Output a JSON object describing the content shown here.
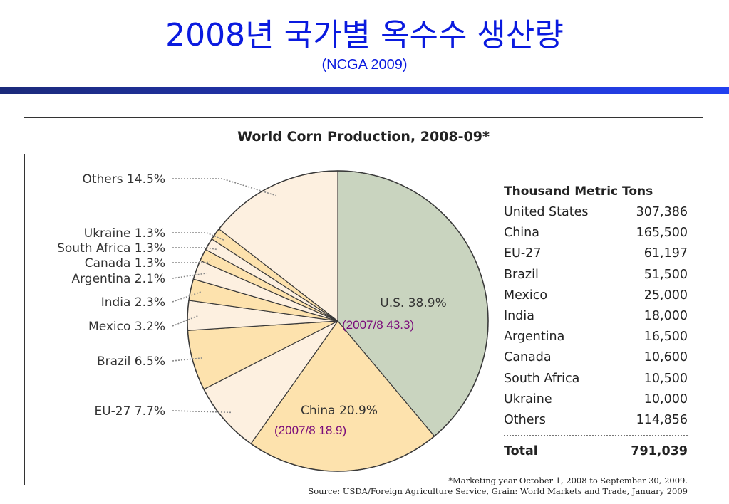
{
  "slide": {
    "title": "2008년 국가별 옥수수 생산량",
    "subtitle": "(NCGA 2009)"
  },
  "chart_data": {
    "type": "pie",
    "title": "World Corn Production, 2008-09*",
    "slices": [
      {
        "label": "U.S.",
        "value": 38.9,
        "color": "#c9d4bf",
        "text": "U.S. 38.9%"
      },
      {
        "label": "China",
        "value": 20.9,
        "color": "#fde2ad",
        "text": "China 20.9%"
      },
      {
        "label": "EU-27",
        "value": 7.7,
        "color": "#fdf0e0",
        "text": "EU-27 7.7%"
      },
      {
        "label": "Brazil",
        "value": 6.5,
        "color": "#fde2ad",
        "text": "Brazil 6.5%"
      },
      {
        "label": "Mexico",
        "value": 3.2,
        "color": "#fdf0e0",
        "text": "Mexico 3.2%"
      },
      {
        "label": "India",
        "value": 2.3,
        "color": "#fde2ad",
        "text": "India 2.3%"
      },
      {
        "label": "Argentina",
        "value": 2.1,
        "color": "#fdf0e0",
        "text": "Argentina 2.1%"
      },
      {
        "label": "Canada",
        "value": 1.3,
        "color": "#fde2ad",
        "text": "Canada 1.3%"
      },
      {
        "label": "South Africa",
        "value": 1.3,
        "color": "#fdf0e0",
        "text": "South Africa 1.3%"
      },
      {
        "label": "Ukraine",
        "value": 1.3,
        "color": "#fde2ad",
        "text": "Ukraine 1.3%"
      },
      {
        "label": "Others",
        "value": 14.5,
        "color": "#fdf0e0",
        "text": "Others 14.5%"
      }
    ],
    "annotations": {
      "us_prev": "(2007/8  43.3)",
      "china_prev": "(2007/8  18.9)"
    }
  },
  "table": {
    "header": "Thousand Metric Tons",
    "rows": [
      {
        "country": "United States",
        "value": "307,386"
      },
      {
        "country": "China",
        "value": "165,500"
      },
      {
        "country": "EU-27",
        "value": "61,197"
      },
      {
        "country": "Brazil",
        "value": "51,500"
      },
      {
        "country": "Mexico",
        "value": "25,000"
      },
      {
        "country": "India",
        "value": "18,000"
      },
      {
        "country": "Argentina",
        "value": "16,500"
      },
      {
        "country": "Canada",
        "value": "10,600"
      },
      {
        "country": "South Africa",
        "value": "10,500"
      },
      {
        "country": "Ukraine",
        "value": "10,000"
      },
      {
        "country": "Others",
        "value": "114,856"
      }
    ],
    "total_label": "Total",
    "total_value": "791,039"
  },
  "footnote": {
    "line1": "*Marketing year October 1, 2008 to September 30, 2009.",
    "line2": "Source: USDA/Foreign Agriculture Service, Grain: World Markets and Trade, January 2009"
  }
}
